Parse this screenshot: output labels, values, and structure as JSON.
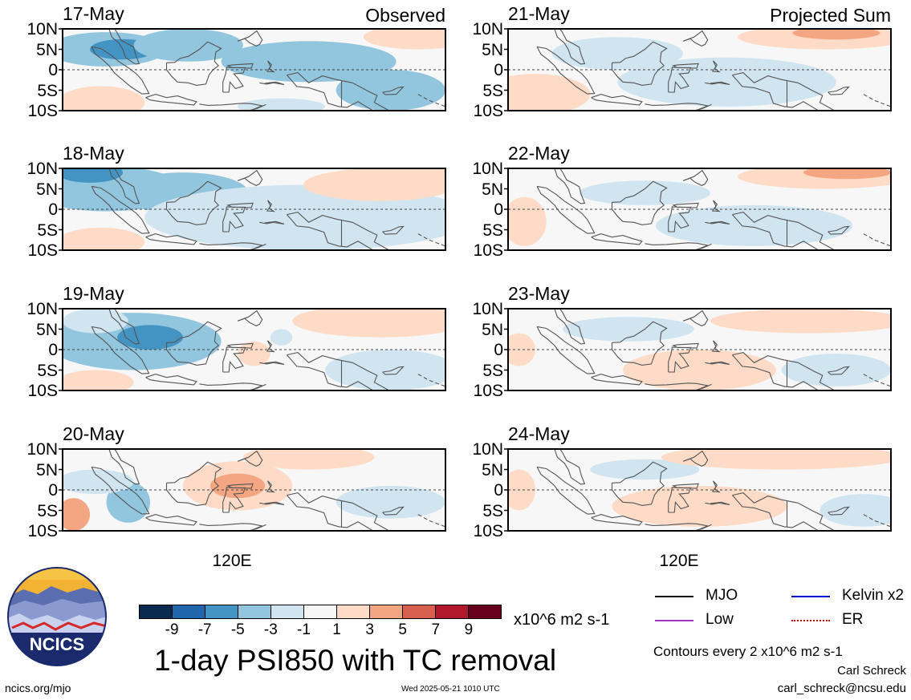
{
  "main_title": "1-day PSI850 with TC removal",
  "url": "ncics.org/mjo",
  "timestamp": "Wed 2025-05-21 1010 UTC",
  "author": "Carl Schreck",
  "email": "carl_schreck@ncsu.edu",
  "logo_text": "NCICS",
  "contour_note": "Contours every 2 x10^6 m2 s-1",
  "units": "x10^6 m2 s-1",
  "colors": {
    "bins": [
      "#0b2a52",
      "#2166ac",
      "#4393c3",
      "#92c5de",
      "#d1e5f0",
      "#f7f7f7",
      "#fddbc7",
      "#f4a582",
      "#d6604d",
      "#b2182b",
      "#67001f"
    ],
    "coast": "#555555"
  },
  "legend": [
    {
      "label": "MJO",
      "color": "#000000",
      "style": "solid"
    },
    {
      "label": "Kelvin x2",
      "color": "#0000cc",
      "style": "solid"
    },
    {
      "label": "Low",
      "color": "#9933cc",
      "style": "solid"
    },
    {
      "label": "ER",
      "color": "#dd0000",
      "style": "dotted"
    }
  ],
  "chart_data": {
    "type": "heatmap",
    "variable": "850-hPa streamfunction anomaly (PSI850)",
    "colorbar": {
      "ticks": [
        "-9",
        "-7",
        "-5",
        "-3",
        "-1",
        "1",
        "3",
        "5",
        "7",
        "9"
      ],
      "levels": [
        -9,
        -7,
        -5,
        -3,
        -1,
        1,
        3,
        5,
        7,
        9
      ]
    },
    "lat_ticks": [
      "10N",
      "5N",
      "0",
      "5S",
      "10S"
    ],
    "lat_range": [
      -10,
      10
    ],
    "lon_tick": "120E",
    "lon_range": [
      90,
      160
    ],
    "columns": [
      {
        "header": "Observed",
        "panels": [
          {
            "date": "17-May",
            "blobs": [
              {
                "lon": 98,
                "lat": 5,
                "rx": 11,
                "ry": 4.2,
                "v": -3
              },
              {
                "lon": 101,
                "lat": 5,
                "rx": 6,
                "ry": 2.5,
                "v": -5
              },
              {
                "lon": 113,
                "lat": 6,
                "rx": 10,
                "ry": 4,
                "v": -3
              },
              {
                "lon": 135,
                "lat": 2,
                "rx": 16,
                "ry": 5,
                "v": -3
              },
              {
                "lon": 150,
                "lat": -5,
                "rx": 10,
                "ry": 5,
                "v": -4
              },
              {
                "lon": 155,
                "lat": 8,
                "rx": 10,
                "ry": 3,
                "v": 2
              },
              {
                "lon": 97,
                "lat": -8,
                "rx": 8,
                "ry": 4,
                "v": 3
              },
              {
                "lon": 130,
                "lat": -9,
                "rx": 8,
                "ry": 2,
                "v": -2
              }
            ]
          },
          {
            "date": "18-May",
            "blobs": [
              {
                "lon": 98,
                "lat": 5,
                "rx": 14,
                "ry": 5.5,
                "v": -4
              },
              {
                "lon": 95,
                "lat": 9,
                "rx": 6,
                "ry": 2.5,
                "v": -5
              },
              {
                "lon": 112,
                "lat": 4,
                "rx": 12,
                "ry": 5,
                "v": -3
              },
              {
                "lon": 135,
                "lat": -2,
                "rx": 30,
                "ry": 8,
                "v": -2
              },
              {
                "lon": 148,
                "lat": 6,
                "rx": 14,
                "ry": 4,
                "v": 2
              },
              {
                "lon": 157,
                "lat": 9,
                "rx": 6,
                "ry": 2.5,
                "v": 3
              },
              {
                "lon": 97,
                "lat": -8,
                "rx": 8,
                "ry": 3.5,
                "v": 3
              }
            ]
          },
          {
            "date": "19-May",
            "blobs": [
              {
                "lon": 103,
                "lat": 2,
                "rx": 16,
                "ry": 7,
                "v": -3
              },
              {
                "lon": 106,
                "lat": 3,
                "rx": 6,
                "ry": 3,
                "v": -5
              },
              {
                "lon": 96,
                "lat": 7,
                "rx": 6,
                "ry": 3,
                "v": -2
              },
              {
                "lon": 125,
                "lat": -1,
                "rx": 3,
                "ry": 3,
                "v": 2
              },
              {
                "lon": 150,
                "lat": -5,
                "rx": 12,
                "ry": 5,
                "v": -2
              },
              {
                "lon": 148,
                "lat": 7,
                "rx": 16,
                "ry": 4,
                "v": 2
              },
              {
                "lon": 96,
                "lat": -8,
                "rx": 7,
                "ry": 3,
                "v": 2
              },
              {
                "lon": 130,
                "lat": 3,
                "rx": 2,
                "ry": 2,
                "v": -2
              }
            ]
          },
          {
            "date": "20-May",
            "blobs": [
              {
                "lon": 102,
                "lat": -3,
                "rx": 4,
                "ry": 5,
                "v": -3
              },
              {
                "lon": 96,
                "lat": 2,
                "rx": 7,
                "ry": 3,
                "v": -2
              },
              {
                "lon": 122,
                "lat": 1,
                "rx": 10,
                "ry": 6,
                "v": 3
              },
              {
                "lon": 122,
                "lat": 1,
                "rx": 5,
                "ry": 3,
                "v": 5
              },
              {
                "lon": 92,
                "lat": -6,
                "rx": 3,
                "ry": 4,
                "v": 5
              },
              {
                "lon": 135,
                "lat": 8,
                "rx": 12,
                "ry": 3,
                "v": 2
              },
              {
                "lon": 150,
                "lat": -3,
                "rx": 10,
                "ry": 4,
                "v": -2
              }
            ]
          }
        ]
      },
      {
        "header": "Projected Sum",
        "panels": [
          {
            "date": "21-May",
            "blobs": [
              {
                "lon": 110,
                "lat": 4,
                "rx": 12,
                "ry": 4,
                "v": -2
              },
              {
                "lon": 148,
                "lat": 8,
                "rx": 16,
                "ry": 3,
                "v": 3
              },
              {
                "lon": 150,
                "lat": 9,
                "rx": 8,
                "ry": 1.6,
                "v": 5
              },
              {
                "lon": 130,
                "lat": -3,
                "rx": 20,
                "ry": 6,
                "v": -2
              },
              {
                "lon": 95,
                "lat": -6,
                "rx": 10,
                "ry": 5,
                "v": 2
              }
            ]
          },
          {
            "date": "22-May",
            "blobs": [
              {
                "lon": 115,
                "lat": 4,
                "rx": 12,
                "ry": 3,
                "v": -2
              },
              {
                "lon": 148,
                "lat": 8,
                "rx": 16,
                "ry": 3,
                "v": 3
              },
              {
                "lon": 152,
                "lat": 9,
                "rx": 8,
                "ry": 1.6,
                "v": 5
              },
              {
                "lon": 135,
                "lat": -4,
                "rx": 18,
                "ry": 5,
                "v": -2
              },
              {
                "lon": 93,
                "lat": -3,
                "rx": 4,
                "ry": 6,
                "v": 2
              }
            ]
          },
          {
            "date": "23-May",
            "blobs": [
              {
                "lon": 112,
                "lat": 5,
                "rx": 12,
                "ry": 3,
                "v": -2
              },
              {
                "lon": 145,
                "lat": 7,
                "rx": 18,
                "ry": 3,
                "v": 2
              },
              {
                "lon": 125,
                "lat": -5,
                "rx": 14,
                "ry": 5,
                "v": 2
              },
              {
                "lon": 92,
                "lat": 0,
                "rx": 3,
                "ry": 4,
                "v": 3
              },
              {
                "lon": 150,
                "lat": -5,
                "rx": 10,
                "ry": 4,
                "v": -2
              }
            ]
          },
          {
            "date": "24-May",
            "blobs": [
              {
                "lon": 115,
                "lat": 5,
                "rx": 10,
                "ry": 2.5,
                "v": -2
              },
              {
                "lon": 140,
                "lat": 8,
                "rx": 22,
                "ry": 3,
                "v": 2
              },
              {
                "lon": 125,
                "lat": -4,
                "rx": 16,
                "ry": 5,
                "v": 2
              },
              {
                "lon": 92,
                "lat": 0,
                "rx": 3,
                "ry": 5,
                "v": 3
              },
              {
                "lon": 155,
                "lat": -5,
                "rx": 8,
                "ry": 4,
                "v": -2
              }
            ]
          }
        ]
      }
    ]
  }
}
